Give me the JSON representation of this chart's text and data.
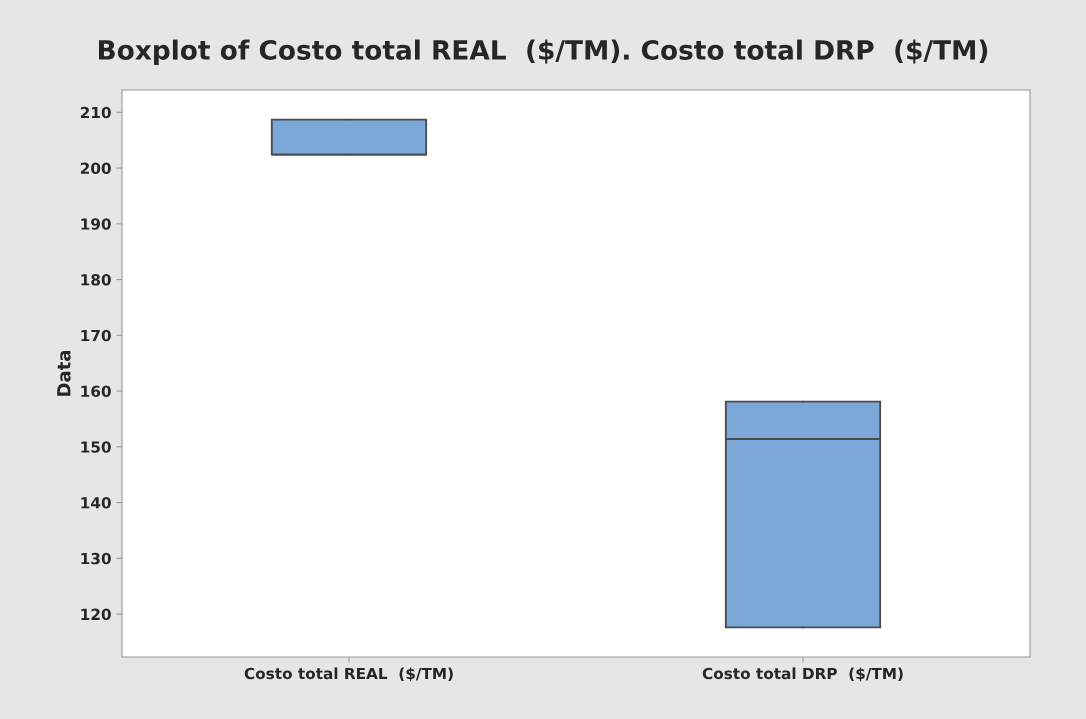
{
  "chart_data": {
    "type": "box",
    "title": "Boxplot of Costo total REAL  ($/TM). Costo total DRP  ($/TM)",
    "ylabel": "Data",
    "categories": [
      "Costo total REAL  ($/TM)",
      "Costo total DRP  ($/TM)"
    ],
    "color": "#7ba7d9",
    "boxes": [
      {
        "low": 202.4,
        "q1": 202.4,
        "median": 202.4,
        "q3": 208.7,
        "high": 208.7
      },
      {
        "low": 117.6,
        "q1": 117.6,
        "median": 151.4,
        "q3": 158.1,
        "high": 158.1
      }
    ],
    "ylim": [
      112.3,
      214.0
    ],
    "yticks": [
      120,
      130,
      140,
      150,
      160,
      170,
      180,
      190,
      200,
      210
    ],
    "grid": false
  }
}
